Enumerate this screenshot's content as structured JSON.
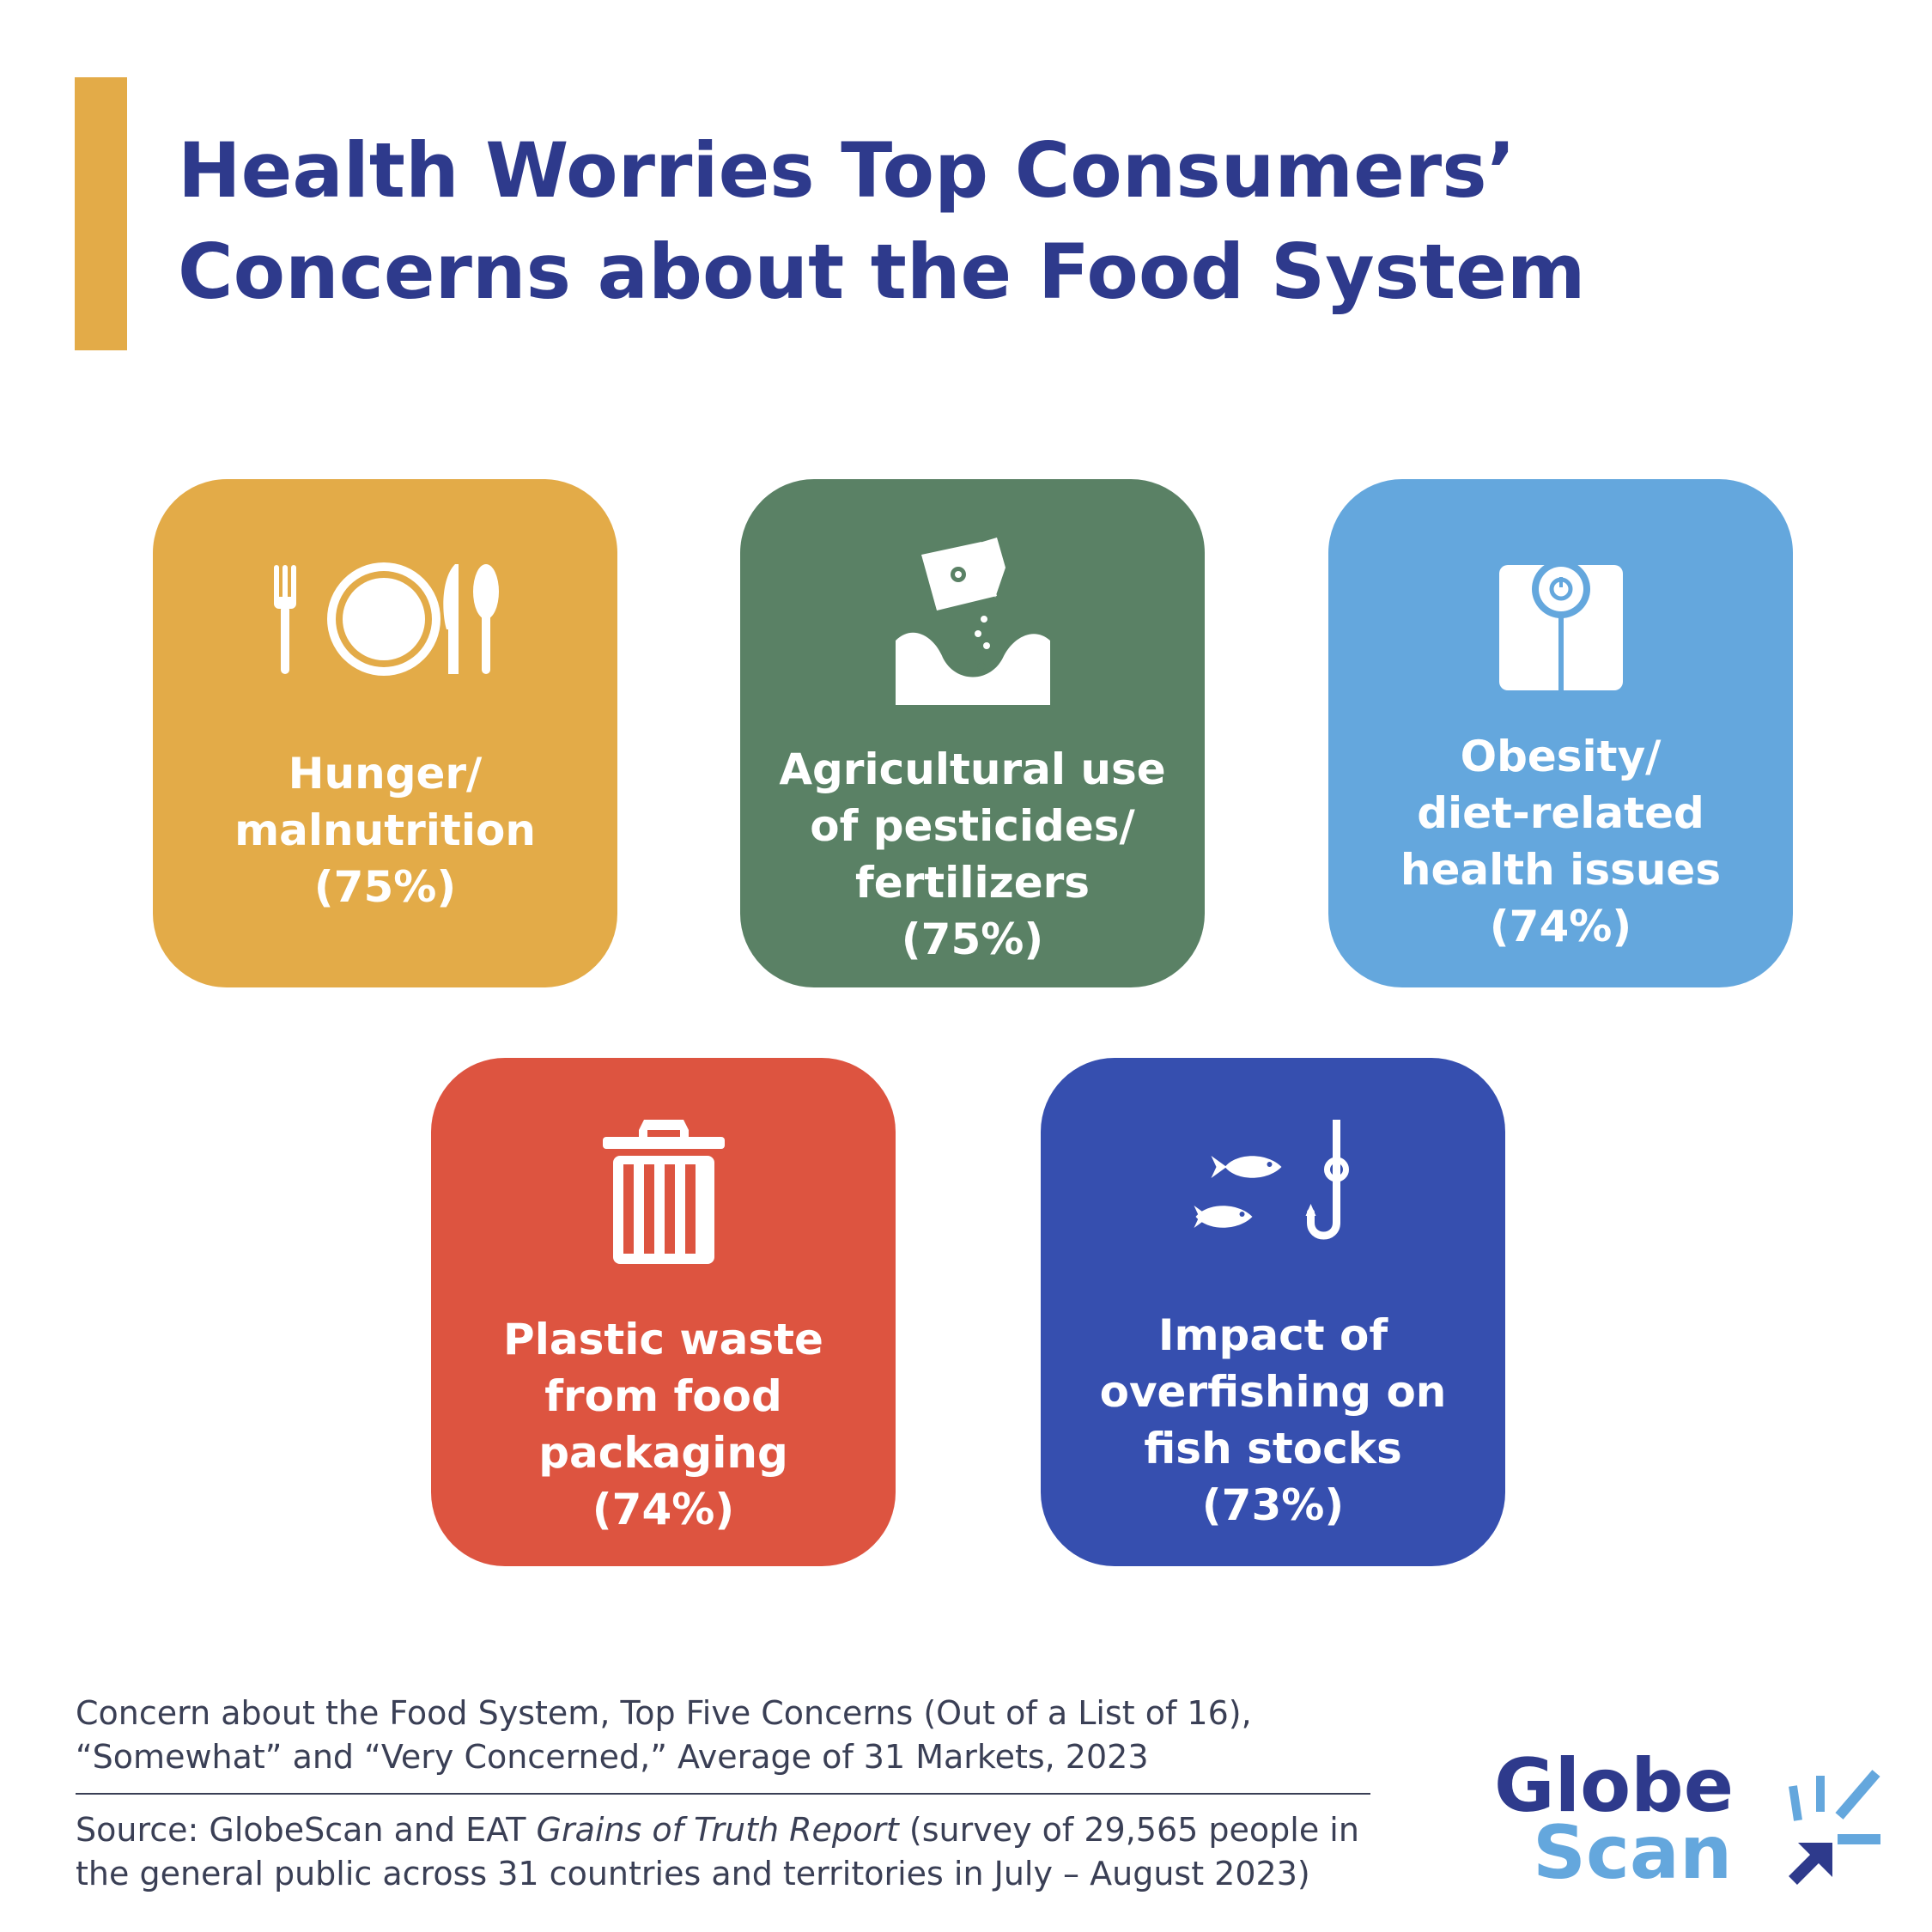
{
  "header": {
    "title_line1": "Health Worries Top Consumers’",
    "title_line2": "Concerns about the Food System",
    "accent_color": "#e3ab48",
    "title_color": "#2e3a8c"
  },
  "concerns": [
    {
      "icon": "plate-cutlery-icon",
      "label_lines": [
        "Hunger/",
        "malnutrition"
      ],
      "percent_text": "(75%)",
      "percent": 75,
      "color": "#e3ab48"
    },
    {
      "icon": "fertilizer-bag-icon",
      "label_lines": [
        "Agricultural use",
        "of pesticides/",
        "fertilizers"
      ],
      "percent_text": "(75%)",
      "percent": 75,
      "color": "#5a8165"
    },
    {
      "icon": "scale-icon",
      "label_lines": [
        "Obesity/",
        "diet-related",
        "health issues"
      ],
      "percent_text": "(74%)",
      "percent": 74,
      "color": "#64a7dd"
    },
    {
      "icon": "trash-can-icon",
      "label_lines": [
        "Plastic waste",
        "from food",
        "packaging"
      ],
      "percent_text": "(74%)",
      "percent": 74,
      "color": "#dd5440"
    },
    {
      "icon": "fish-hook-icon",
      "label_lines": [
        "Impact of",
        "overfishing on",
        "fish stocks"
      ],
      "percent_text": "(73%)",
      "percent": 73,
      "color": "#364faf"
    }
  ],
  "footnote": {
    "line1": "Concern about the Food System, Top Five Concerns (Out of a List of 16),",
    "line2": "“Somewhat” and “Very Concerned,” Average of 31 Markets, 2023"
  },
  "source": {
    "prefix": "Source: GlobeScan and EAT ",
    "report_title": "Grains of Truth Report",
    "suffix": " (survey of 29,565 people in",
    "line2": "the general public across 31 countries and territories in July – August 2023)"
  },
  "logo": {
    "word1": "Globe",
    "word2": "Scan"
  }
}
